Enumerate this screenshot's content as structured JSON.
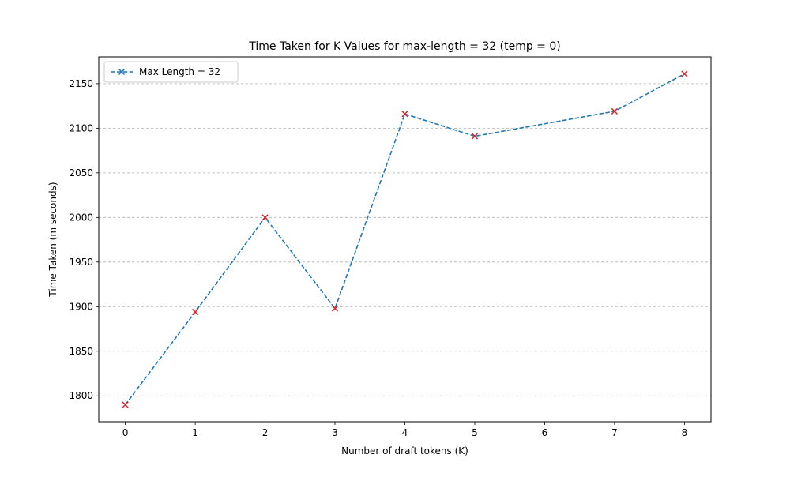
{
  "chart_data": {
    "type": "line",
    "title": "Time Taken for K Values for max-length = 32 (temp = 0)",
    "xlabel": "Number of draft tokens (K)",
    "ylabel": "Time Taken (m seconds)",
    "x": [
      0,
      1,
      2,
      4,
      5,
      7,
      8,
      3
    ],
    "xticks": [
      "0",
      "1",
      "2",
      "3",
      "4",
      "5",
      "6",
      "7",
      "8"
    ],
    "yticks": [
      "1800",
      "1850",
      "1900",
      "1950",
      "2000",
      "2050",
      "2100",
      "2150"
    ],
    "xlim": [
      -0.38,
      8.38
    ],
    "ylim": [
      1771,
      2180
    ],
    "grid": "y-dashed",
    "legend_position": "top-left",
    "series": [
      {
        "name": "Max Length = 32",
        "x": [
          0,
          1,
          2,
          3,
          4,
          5,
          7,
          8
        ],
        "values": [
          1790,
          1894,
          2000,
          1898,
          2116,
          2091,
          2119,
          2161
        ],
        "line_color": "#1f77b4",
        "marker_color": "#d62728",
        "line_style": "dashed",
        "marker": "x"
      }
    ]
  }
}
